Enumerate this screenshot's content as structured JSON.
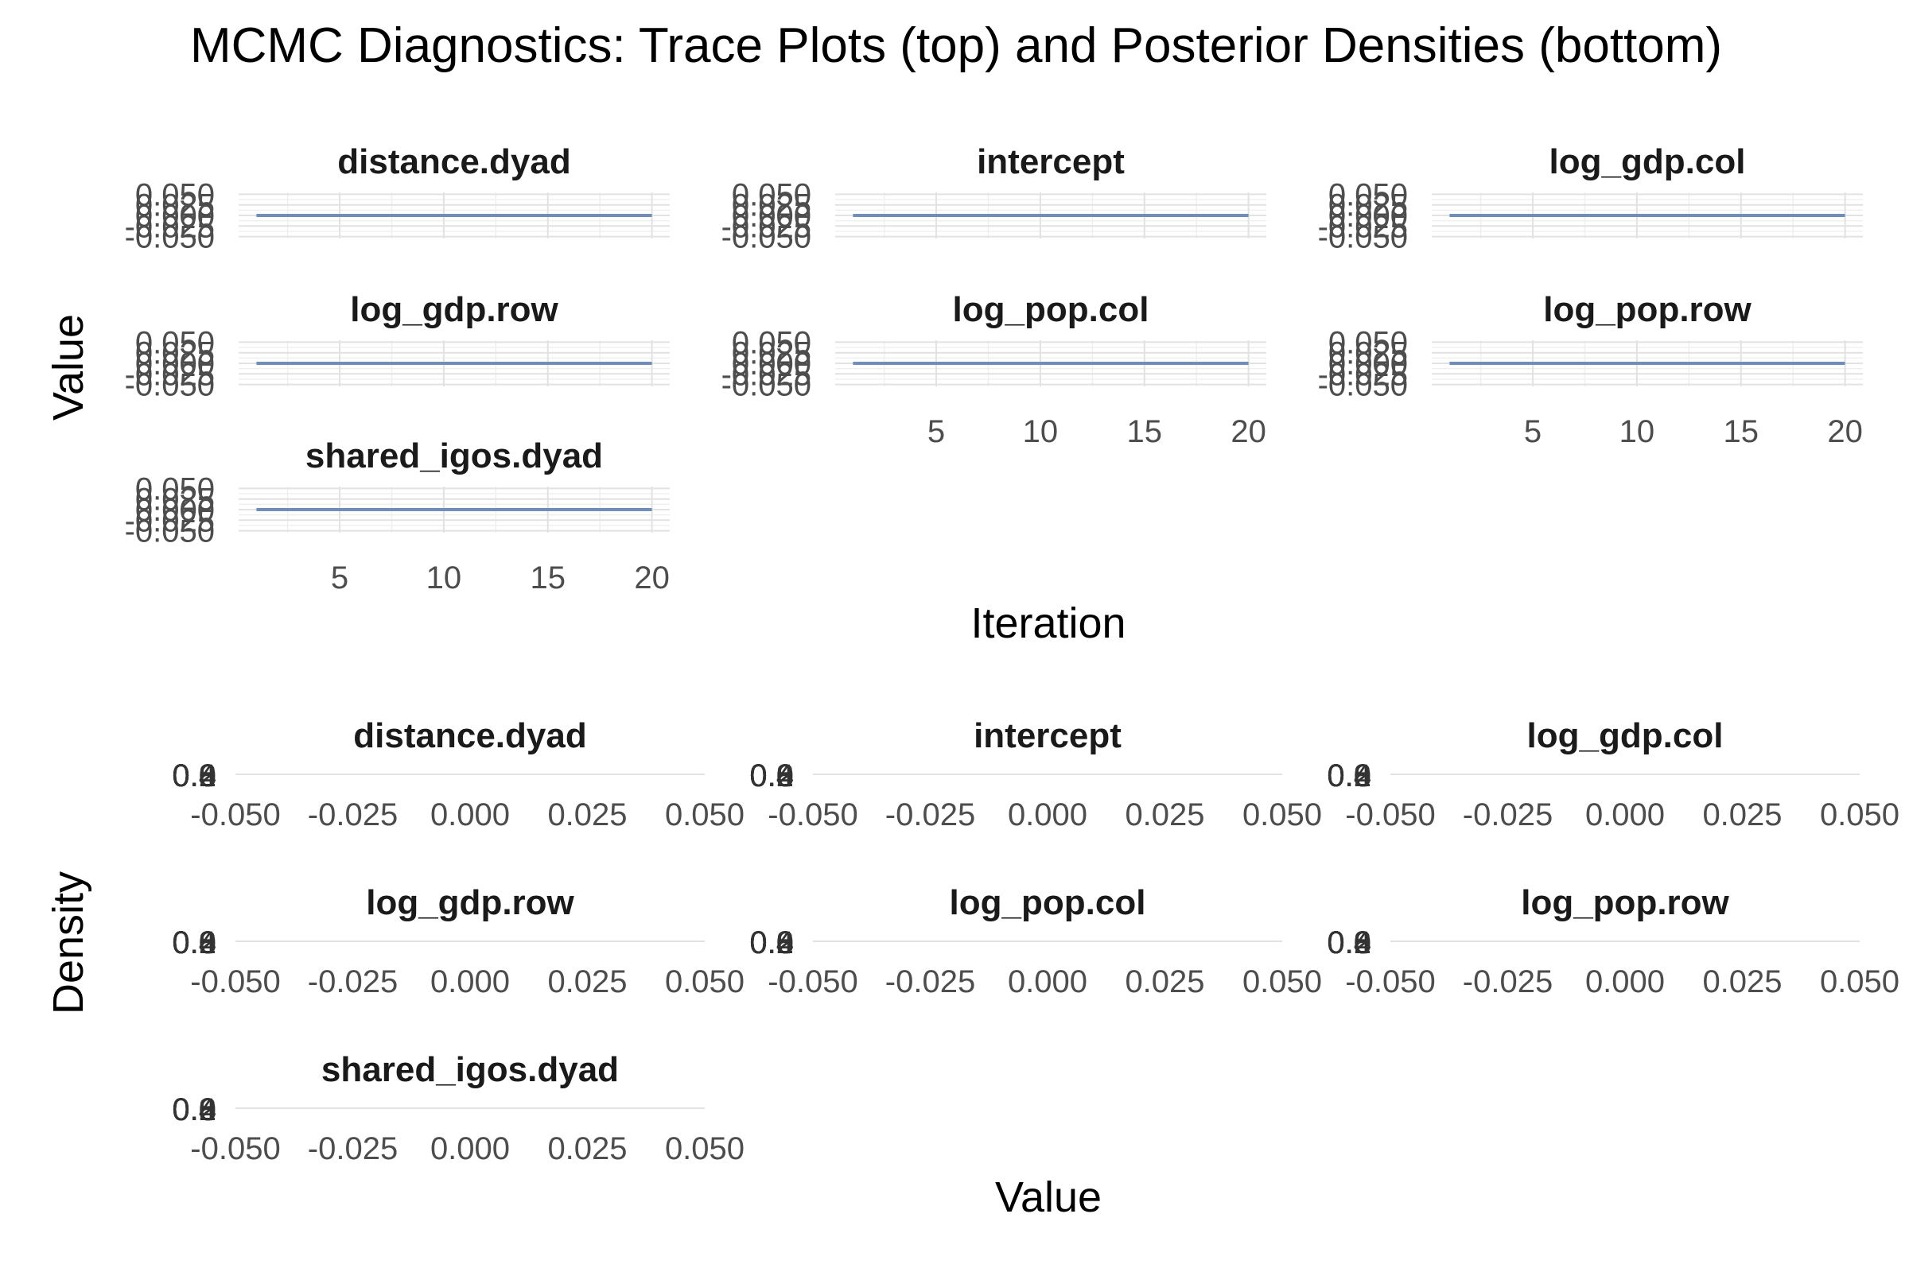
{
  "chart_data": [
    {
      "type": "line",
      "role": "trace",
      "title": "MCMC Diagnostics: Trace Plots (top) and Posterior Densities (bottom)",
      "xlabel": "Iteration",
      "ylabel": "Value",
      "xlim": [
        1,
        20
      ],
      "ylim": [
        -0.05,
        0.05
      ],
      "x_ticks": [
        "5",
        "10",
        "15",
        "20"
      ],
      "y_ticks": [
        "-0.050",
        "-0.025",
        "0.000",
        "0.025",
        "0.050"
      ],
      "x": [
        1,
        2,
        3,
        4,
        5,
        6,
        7,
        8,
        9,
        10,
        11,
        12,
        13,
        14,
        15,
        16,
        17,
        18,
        19,
        20
      ],
      "series": [
        {
          "name": "distance.dyad",
          "values": [
            0,
            0,
            0,
            0,
            0,
            0,
            0,
            0,
            0,
            0,
            0,
            0,
            0,
            0,
            0,
            0,
            0,
            0,
            0,
            0
          ]
        },
        {
          "name": "intercept",
          "values": [
            0,
            0,
            0,
            0,
            0,
            0,
            0,
            0,
            0,
            0,
            0,
            0,
            0,
            0,
            0,
            0,
            0,
            0,
            0,
            0
          ]
        },
        {
          "name": "log_gdp.col",
          "values": [
            0,
            0,
            0,
            0,
            0,
            0,
            0,
            0,
            0,
            0,
            0,
            0,
            0,
            0,
            0,
            0,
            0,
            0,
            0,
            0
          ]
        },
        {
          "name": "log_gdp.row",
          "values": [
            0,
            0,
            0,
            0,
            0,
            0,
            0,
            0,
            0,
            0,
            0,
            0,
            0,
            0,
            0,
            0,
            0,
            0,
            0,
            0
          ]
        },
        {
          "name": "log_pop.col",
          "values": [
            0,
            0,
            0,
            0,
            0,
            0,
            0,
            0,
            0,
            0,
            0,
            0,
            0,
            0,
            0,
            0,
            0,
            0,
            0,
            0
          ]
        },
        {
          "name": "log_pop.row",
          "values": [
            0,
            0,
            0,
            0,
            0,
            0,
            0,
            0,
            0,
            0,
            0,
            0,
            0,
            0,
            0,
            0,
            0,
            0,
            0,
            0
          ]
        },
        {
          "name": "shared_igos.dyad",
          "values": [
            0,
            0,
            0,
            0,
            0,
            0,
            0,
            0,
            0,
            0,
            0,
            0,
            0,
            0,
            0,
            0,
            0,
            0,
            0,
            0
          ]
        }
      ],
      "color": "#6f8fb8"
    },
    {
      "type": "area",
      "role": "density",
      "xlabel": "Value",
      "ylabel": "Density",
      "xlim": [
        -0.05,
        0.05
      ],
      "ylim": [
        0,
        1
      ],
      "x_ticks": [
        "-0.050",
        "-0.025",
        "0.000",
        "0.025",
        "0.050"
      ],
      "y_ticks": [
        "0.0",
        "0.2",
        "0.4",
        "0.6",
        "0.8"
      ],
      "series": [
        {
          "name": "distance.dyad",
          "values": []
        },
        {
          "name": "intercept",
          "values": []
        },
        {
          "name": "log_gdp.col",
          "values": []
        },
        {
          "name": "log_gdp.row",
          "values": []
        },
        {
          "name": "log_pop.col",
          "values": []
        },
        {
          "name": "log_pop.row",
          "values": []
        },
        {
          "name": "shared_igos.dyad",
          "values": []
        }
      ]
    }
  ]
}
